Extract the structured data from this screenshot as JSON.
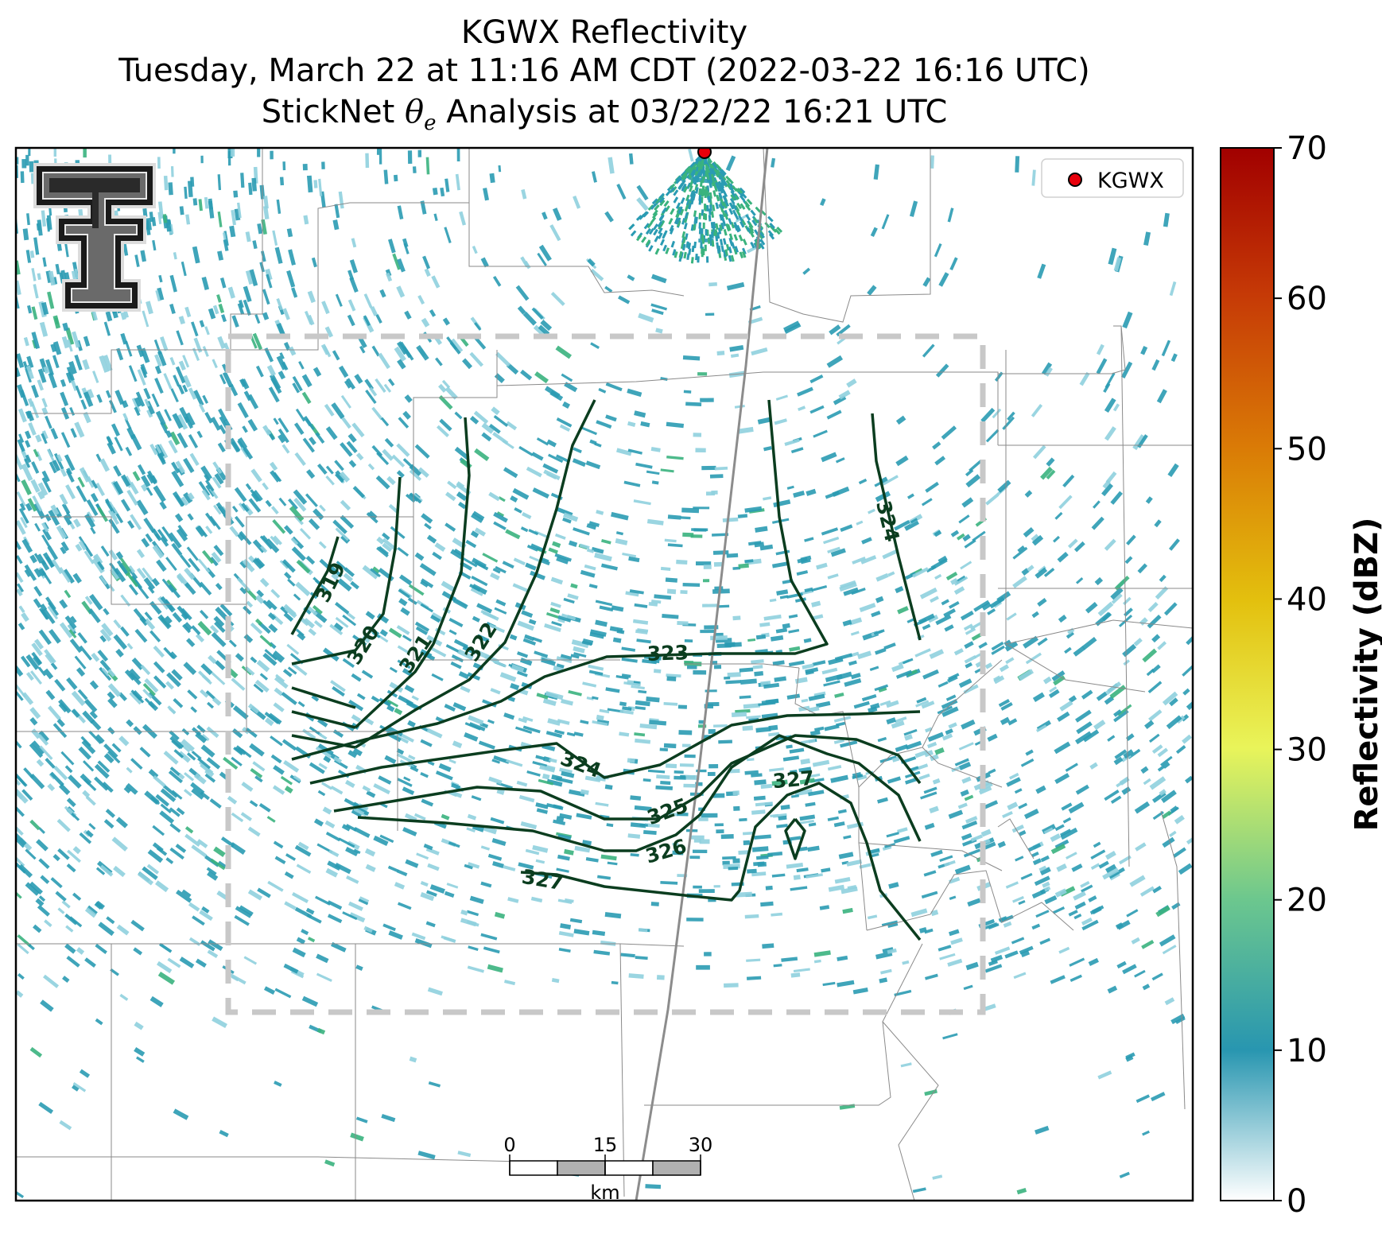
{
  "title": {
    "line1": "KGWX Reflectivity",
    "line2": "Tuesday, March 22 at 11:16 AM CDT (2022-03-22 16:16 UTC)",
    "line3_prefix": "StickNet",
    "line3_symbol": "θ",
    "line3_subscript": "e",
    "line3_suffix": "Analysis at 03/22/22 16:21 UTC"
  },
  "legend": {
    "label": "KGWX",
    "marker_color": "#e8000b"
  },
  "colorbar": {
    "label": "Reflectivity (dBZ)",
    "ticks": [
      "0",
      "10",
      "20",
      "30",
      "40",
      "50",
      "60",
      "70"
    ],
    "min": 0,
    "max": 70
  },
  "scalebar": {
    "ticks": [
      "0",
      "15",
      "30"
    ],
    "unit": "km"
  },
  "contours": {
    "color": "#0b3d1f",
    "labels": [
      "319",
      "320",
      "321",
      "322",
      "323",
      "324",
      "324",
      "325",
      "326",
      "327",
      "327"
    ]
  },
  "colors": {
    "echo_main": "#2a9bb3",
    "echo_light": "#8fd0de",
    "echo_green": "#3ab37e",
    "domain_box": "#c8c8c8",
    "county_lines": "#8a8a8a",
    "radar_beam": "#8c8c8c"
  },
  "icons": {
    "logo": "texas-tech-double-t-logo",
    "radar": "radar-site-marker"
  }
}
